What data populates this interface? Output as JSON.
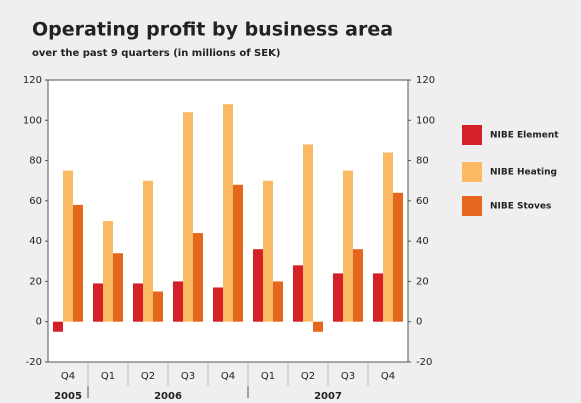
{
  "chart_data": {
    "type": "bar",
    "title": "Operating profit by business area",
    "subtitle": "over the past 9 quarters (in millions of SEK)",
    "categories": [
      "Q4",
      "Q1",
      "Q2",
      "Q3",
      "Q4",
      "Q1",
      "Q2",
      "Q3",
      "Q4"
    ],
    "x_groups": [
      {
        "label": "2005",
        "size": 1
      },
      {
        "label": "2006",
        "size": 4
      },
      {
        "label": "2007",
        "size": 4
      }
    ],
    "series": [
      {
        "name": "NIBE Element",
        "color": "#d42027",
        "values": [
          -5,
          19,
          19,
          20,
          17,
          36,
          28,
          24,
          24
        ]
      },
      {
        "name": "NIBE Heating",
        "color": "#fbb964",
        "values": [
          75,
          50,
          70,
          104,
          108,
          70,
          88,
          75,
          84
        ]
      },
      {
        "name": "NIBE Stoves",
        "color": "#e5671e",
        "values": [
          58,
          34,
          15,
          44,
          68,
          20,
          -5,
          36,
          64
        ]
      }
    ],
    "ylim": [
      -20,
      120
    ],
    "yticks": [
      -20,
      0,
      20,
      40,
      60,
      80,
      100,
      120
    ],
    "y2lim": [
      -20,
      120
    ],
    "y2ticks": [
      -20,
      0,
      20,
      40,
      60,
      80,
      100,
      120
    ],
    "grid": false,
    "legend": "right"
  }
}
